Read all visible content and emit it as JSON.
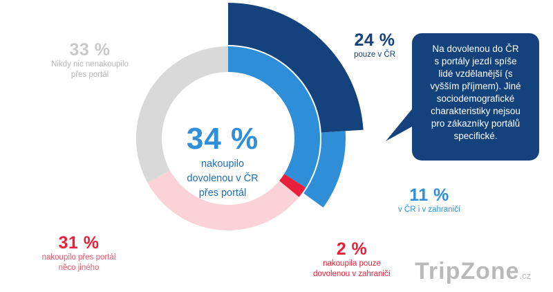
{
  "chart_data": {
    "type": "pie",
    "donut": true,
    "center_label": {
      "value": "34 %",
      "text_lines": [
        "nakoupilo",
        "dovolenou v ČR",
        "přes portál"
      ]
    },
    "inner_ring": [
      {
        "label_lines": [
          "nakoupilo dovolenou v ČR přes portál"
        ],
        "pct_text": "34 %",
        "value": 34,
        "color": "#2e8fd8"
      },
      {
        "label_lines": [
          "nakoupila pouze",
          "dovolenou v zahraničí"
        ],
        "pct_text": "2 %",
        "value": 2,
        "color": "#e8203b"
      },
      {
        "label_lines": [
          "nakoupilo přes portál",
          "něco jiného"
        ],
        "pct_text": "31 %",
        "value": 31,
        "color": "#fad2d8"
      },
      {
        "label_lines": [
          "Nikdy nic nenakoupilo",
          "přes portál"
        ],
        "pct_text": "33 %",
        "value": 33,
        "color": "#d9d9d9"
      }
    ],
    "outer_ring": [
      {
        "label_lines": [
          "pouze v ČR"
        ],
        "pct_text": "24 %",
        "value": 24,
        "color": "#13427d"
      },
      {
        "label_lines": [
          "v ČR i v zahraničí"
        ],
        "pct_text": "11 %",
        "value": 11,
        "color": "#2e8fd8"
      }
    ],
    "label_colors": {
      "dark_blue": "#13427d",
      "blue": "#2e8fd8",
      "red": "#e8203b",
      "pink": "#e25a6c",
      "gray": "#c9c9c9"
    }
  },
  "callout": {
    "lines": [
      "Na dovolenou do ČR",
      "s portály jezdí spíše",
      "lidé vzdělanější (s",
      "vyšším příjmem). Jiné",
      "sociodemografické",
      "charakteristiky nejsou",
      "pro zákazníky portálů",
      "specifické."
    ],
    "color": "#13427d"
  },
  "watermark": {
    "text": "TripZone",
    "suffix": ".cz"
  }
}
